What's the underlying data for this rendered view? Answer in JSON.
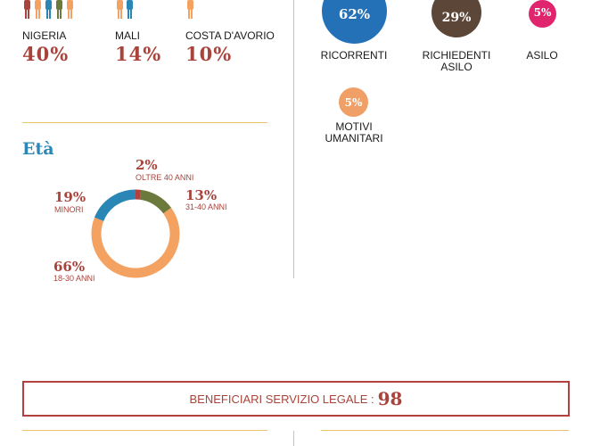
{
  "nationalities": [
    {
      "name": "NIGERIA",
      "pct": "40%"
    },
    {
      "name": "MALI",
      "pct": "14%"
    },
    {
      "name": "COSTA D'AVORIO",
      "pct": "10%"
    }
  ],
  "permits": [
    {
      "pct": "62%",
      "label": "RICORRENTI",
      "color": "#2471b8"
    },
    {
      "pct": "29%",
      "label": "RICHIEDENTI ASILO",
      "color": "#5b4638"
    },
    {
      "pct": "5%",
      "label": "ASILO",
      "color": "#e0246e"
    },
    {
      "pct": "5%",
      "label": "MOTIVI UMANITARI",
      "color": "#f0a066"
    }
  ],
  "age": {
    "title": "Età",
    "segments": [
      {
        "pct": "2%",
        "label": "OLTRE 40 ANNI",
        "value": 2,
        "color": "#b0413e"
      },
      {
        "pct": "13%",
        "label": "31-40 ANNI",
        "value": 13,
        "color": "#6b7a3c"
      },
      {
        "pct": "66%",
        "label": "18-30 ANNI",
        "value": 66,
        "color": "#f4a261"
      },
      {
        "pct": "19%",
        "label": "MINORI",
        "value": 19,
        "color": "#2a86b5"
      }
    ]
  },
  "legal": {
    "label": "BENEFICIARI SERVIZIO LEGALE :",
    "value": "98"
  },
  "icon_colors": {
    "primary": "#a8443c",
    "secondary": "#f4a261",
    "tertiary": "#2a86b5"
  }
}
